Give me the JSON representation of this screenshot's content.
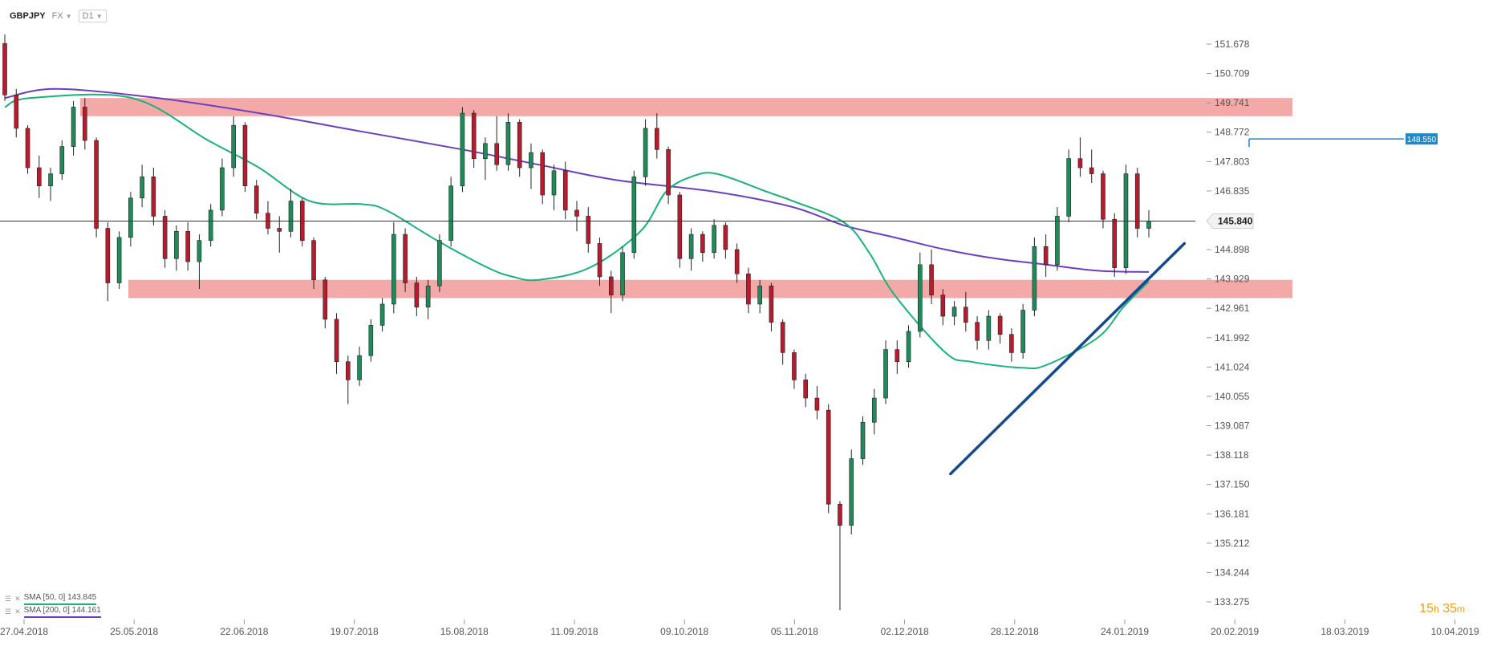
{
  "toolbar": {
    "symbol": "GBPJPY",
    "market": "FX",
    "interval": "D1"
  },
  "legend": [
    {
      "label": "SMA [50, 0] 143.845",
      "color": "#1bb27a"
    },
    {
      "label": "SMA [200, 0] 144.161",
      "color": "#6a3fc2"
    }
  ],
  "timer": {
    "hours": "15",
    "h_unit": "h",
    "minutes": "35",
    "m_unit": "m"
  },
  "chart_data": {
    "type": "candlestick",
    "symbol": "GBPJPY",
    "y_ticks": [
      "151.678",
      "150.709",
      "149.741",
      "148.772",
      "147.803",
      "146.835",
      "145.866",
      "144.898",
      "143.929",
      "142.961",
      "141.992",
      "141.024",
      "140.055",
      "139.087",
      "138.118",
      "137.150",
      "136.181",
      "135.212",
      "134.244",
      "133.275"
    ],
    "x_ticks": [
      "27.04.2018",
      "25.05.2018",
      "22.06.2018",
      "19.07.2018",
      "15.08.2018",
      "11.09.2018",
      "09.10.2018",
      "05.11.2018",
      "02.12.2018",
      "28.12.2018",
      "24.01.2019",
      "20.02.2019",
      "18.03.2019",
      "10.04.2019"
    ],
    "current_price": "145.840",
    "level_marker": "148.550",
    "resistance_zone": [
      149.3,
      149.9
    ],
    "support_zone": [
      143.3,
      143.9
    ],
    "colors": {
      "up": "#1f8a5a",
      "down": "#b71c2e",
      "sma50": "#1bb27a",
      "sma200": "#6a3fc2",
      "zones": "#f08c8c",
      "trendline": "#154a8c",
      "marker": "#1e88c8"
    },
    "sma50_anchors": [
      [
        0,
        149.6
      ],
      [
        1,
        149.9
      ],
      [
        5,
        149.9
      ],
      [
        8,
        148.5
      ],
      [
        10,
        147.6
      ],
      [
        12,
        146.5
      ],
      [
        14,
        146.4
      ],
      [
        15,
        146.2
      ],
      [
        17,
        145.2
      ],
      [
        19,
        144.3
      ],
      [
        20,
        144.0
      ],
      [
        21,
        143.9
      ],
      [
        23,
        144.3
      ],
      [
        25,
        145.5
      ],
      [
        26,
        146.8
      ],
      [
        27,
        147.3
      ],
      [
        28,
        147.4
      ],
      [
        30,
        146.8
      ],
      [
        31,
        146.5
      ],
      [
        33,
        145.8
      ],
      [
        34,
        144.8
      ],
      [
        35,
        143.4
      ],
      [
        37,
        141.5
      ],
      [
        38,
        141.2
      ],
      [
        40,
        141.0
      ],
      [
        41,
        141.1
      ],
      [
        43,
        142.0
      ],
      [
        44,
        143.0
      ],
      [
        45,
        143.845
      ]
    ],
    "sma200_anchors": [
      [
        0,
        149.9
      ],
      [
        2,
        150.2
      ],
      [
        6,
        149.9
      ],
      [
        10,
        149.4
      ],
      [
        14,
        148.8
      ],
      [
        18,
        148.2
      ],
      [
        21,
        147.7
      ],
      [
        24,
        147.2
      ],
      [
        28,
        146.8
      ],
      [
        31,
        146.3
      ],
      [
        33,
        145.7
      ],
      [
        35,
        145.3
      ],
      [
        37,
        144.9
      ],
      [
        39,
        144.6
      ],
      [
        41,
        144.4
      ],
      [
        43,
        144.2
      ],
      [
        45,
        144.161
      ]
    ],
    "trendline_anchors": [
      [
        37.2,
        137.5
      ],
      [
        46.4,
        145.1
      ]
    ],
    "candles": [
      [
        151.7,
        152.0,
        149.8,
        150.0
      ],
      [
        150.0,
        150.2,
        148.6,
        148.9
      ],
      [
        148.9,
        149.0,
        147.4,
        147.6
      ],
      [
        147.6,
        148.0,
        146.6,
        147.0
      ],
      [
        147.0,
        147.6,
        146.5,
        147.4
      ],
      [
        147.4,
        148.5,
        147.2,
        148.3
      ],
      [
        148.3,
        149.8,
        148.0,
        149.6
      ],
      [
        149.6,
        149.9,
        148.2,
        148.5
      ],
      [
        148.5,
        148.6,
        145.3,
        145.6
      ],
      [
        145.6,
        145.8,
        143.2,
        143.8
      ],
      [
        143.8,
        145.5,
        143.6,
        145.3
      ],
      [
        145.3,
        146.8,
        145.0,
        146.6
      ],
      [
        146.6,
        147.7,
        146.3,
        147.3
      ],
      [
        147.3,
        147.6,
        145.7,
        146.0
      ],
      [
        146.0,
        146.2,
        144.3,
        144.6
      ],
      [
        144.6,
        145.7,
        144.2,
        145.5
      ],
      [
        145.5,
        145.8,
        144.2,
        144.5
      ],
      [
        144.5,
        145.4,
        143.6,
        145.2
      ],
      [
        145.2,
        146.4,
        145.0,
        146.2
      ],
      [
        146.2,
        147.9,
        146.0,
        147.6
      ],
      [
        147.6,
        149.3,
        147.3,
        149.0
      ],
      [
        149.0,
        149.1,
        146.8,
        147.0
      ],
      [
        147.0,
        147.2,
        145.9,
        146.1
      ],
      [
        146.1,
        146.5,
        145.4,
        145.6
      ],
      [
        145.6,
        146.0,
        144.8,
        145.5
      ],
      [
        145.5,
        146.9,
        145.3,
        146.5
      ],
      [
        146.5,
        146.6,
        145.0,
        145.2
      ],
      [
        145.2,
        145.3,
        143.6,
        143.9
      ],
      [
        143.9,
        144.0,
        142.3,
        142.6
      ],
      [
        142.6,
        142.8,
        140.8,
        141.2
      ],
      [
        141.2,
        141.4,
        139.8,
        140.6
      ],
      [
        140.6,
        141.7,
        140.4,
        141.4
      ],
      [
        141.4,
        142.6,
        141.2,
        142.4
      ],
      [
        142.4,
        143.3,
        142.2,
        143.1
      ],
      [
        143.1,
        145.8,
        142.8,
        145.4
      ],
      [
        145.4,
        145.6,
        143.5,
        143.8
      ],
      [
        143.8,
        144.0,
        142.7,
        143.0
      ],
      [
        143.0,
        143.9,
        142.6,
        143.7
      ],
      [
        143.7,
        145.4,
        143.5,
        145.2
      ],
      [
        145.2,
        147.3,
        145.0,
        147.0
      ],
      [
        147.0,
        149.6,
        146.8,
        149.4
      ],
      [
        149.4,
        149.5,
        147.6,
        147.9
      ],
      [
        147.9,
        148.6,
        147.2,
        148.4
      ],
      [
        148.4,
        149.3,
        147.5,
        147.7
      ],
      [
        147.7,
        149.4,
        147.5,
        149.1
      ],
      [
        149.1,
        149.2,
        147.3,
        147.6
      ],
      [
        147.6,
        148.4,
        146.9,
        148.1
      ],
      [
        148.1,
        148.2,
        146.4,
        146.7
      ],
      [
        146.7,
        147.7,
        146.2,
        147.5
      ],
      [
        147.5,
        147.8,
        145.9,
        146.2
      ],
      [
        146.2,
        146.5,
        145.5,
        146.0
      ],
      [
        146.0,
        146.3,
        144.8,
        145.1
      ],
      [
        145.1,
        145.3,
        143.7,
        144.0
      ],
      [
        144.0,
        144.2,
        142.8,
        143.4
      ],
      [
        143.4,
        145.0,
        143.2,
        144.8
      ],
      [
        144.8,
        147.5,
        144.6,
        147.3
      ],
      [
        147.3,
        149.2,
        147.0,
        148.9
      ],
      [
        148.9,
        149.4,
        147.9,
        148.2
      ],
      [
        148.2,
        148.3,
        146.4,
        146.7
      ],
      [
        146.7,
        146.8,
        144.3,
        144.6
      ],
      [
        144.6,
        145.6,
        144.2,
        145.4
      ],
      [
        145.4,
        145.5,
        144.5,
        144.8
      ],
      [
        144.8,
        145.9,
        144.6,
        145.7
      ],
      [
        145.7,
        145.8,
        144.6,
        144.9
      ],
      [
        144.9,
        145.1,
        143.8,
        144.1
      ],
      [
        144.1,
        144.3,
        142.8,
        143.1
      ],
      [
        143.1,
        143.9,
        142.8,
        143.7
      ],
      [
        143.7,
        143.8,
        142.2,
        142.5
      ],
      [
        142.5,
        142.6,
        141.1,
        141.5
      ],
      [
        141.5,
        141.6,
        140.3,
        140.6
      ],
      [
        140.6,
        140.8,
        139.7,
        140.0
      ],
      [
        140.0,
        140.4,
        139.3,
        139.6
      ],
      [
        139.6,
        139.8,
        136.2,
        136.5
      ],
      [
        136.5,
        136.6,
        133.0,
        135.8
      ],
      [
        135.8,
        138.3,
        135.5,
        138.0
      ],
      [
        138.0,
        139.4,
        137.8,
        139.2
      ],
      [
        139.2,
        140.3,
        138.8,
        140.0
      ],
      [
        140.0,
        141.9,
        139.8,
        141.6
      ],
      [
        141.6,
        141.9,
        140.8,
        141.2
      ],
      [
        141.2,
        142.4,
        141.0,
        142.2
      ],
      [
        142.2,
        144.8,
        142.0,
        144.4
      ],
      [
        144.4,
        144.9,
        143.1,
        143.4
      ],
      [
        143.4,
        143.6,
        142.4,
        142.7
      ],
      [
        142.7,
        143.2,
        142.4,
        143.0
      ],
      [
        143.0,
        143.5,
        142.2,
        142.5
      ],
      [
        142.5,
        142.7,
        141.6,
        141.9
      ],
      [
        141.9,
        142.9,
        141.6,
        142.7
      ],
      [
        142.7,
        142.8,
        141.8,
        142.1
      ],
      [
        142.1,
        142.3,
        141.2,
        141.5
      ],
      [
        141.5,
        143.1,
        141.3,
        142.9
      ],
      [
        142.9,
        145.3,
        142.7,
        145.0
      ],
      [
        145.0,
        145.4,
        144.0,
        144.4
      ],
      [
        144.4,
        146.3,
        144.2,
        146.0
      ],
      [
        146.0,
        148.2,
        145.8,
        147.9
      ],
      [
        147.9,
        148.6,
        147.3,
        147.6
      ],
      [
        147.6,
        148.2,
        147.1,
        147.4
      ],
      [
        147.4,
        147.5,
        145.6,
        145.9
      ],
      [
        145.9,
        146.1,
        144.0,
        144.3
      ],
      [
        144.3,
        147.7,
        144.1,
        147.4
      ],
      [
        147.4,
        147.6,
        145.3,
        145.6
      ],
      [
        145.6,
        146.2,
        145.3,
        145.84
      ]
    ]
  }
}
